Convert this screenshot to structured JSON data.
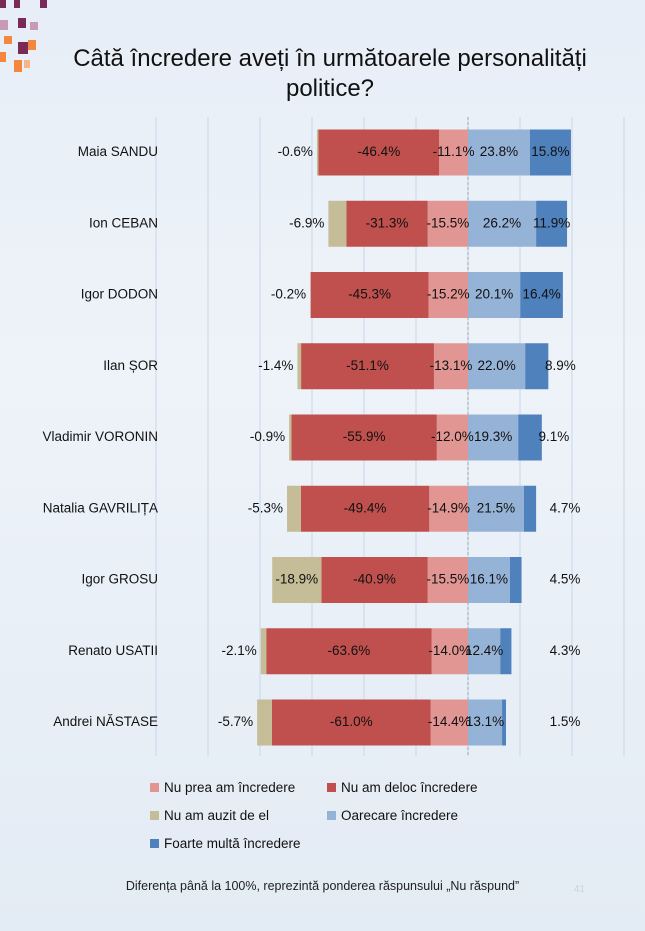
{
  "title_line1": "Câtă încredere aveți în următoarele personalități",
  "title_line2": "politice?",
  "footnote": "Diferența până la 100%, reprezintă ponderea răspunsului „Nu răspund”",
  "page_number": "41",
  "colors": {
    "nu_prea": "#e29693",
    "nu_deloc": "#c0504d",
    "nu_auzit": "#c4bd97",
    "oarecare": "#95b3d7",
    "foarte": "#4f81bd",
    "deco_purple": "#7a2a56",
    "deco_orange": "#f2873d"
  },
  "legend": [
    {
      "key": "nu_prea",
      "label": "Nu prea am încredere"
    },
    {
      "key": "nu_deloc",
      "label": "Nu am deloc încredere"
    },
    {
      "key": "nu_auzit",
      "label": "Nu am auzit de el"
    },
    {
      "key": "oarecare",
      "label": "Oarecare încredere"
    },
    {
      "key": "foarte",
      "label": "Foarte multă încredere"
    }
  ],
  "chart_data": {
    "type": "bar",
    "orientation": "horizontal-diverging",
    "stacked": true,
    "categories": [
      "Maia SANDU",
      "Ion CEBAN",
      "Igor DODON",
      "Ilan ȘOR",
      "Vladimir VORONIN",
      "Natalia GAVRILIȚA",
      "Igor GROSU",
      "Renato USATII",
      "Andrei NĂSTASE"
    ],
    "series": [
      {
        "name": "Nu prea am încredere",
        "key": "nu_prea",
        "values": [
          -11.1,
          -15.5,
          -15.2,
          -13.1,
          -12.0,
          -14.9,
          -15.5,
          -14.0,
          -14.4
        ]
      },
      {
        "name": "Nu am deloc încredere",
        "key": "nu_deloc",
        "values": [
          -46.4,
          -31.3,
          -45.3,
          -51.1,
          -55.9,
          -49.4,
          -40.9,
          -63.6,
          -61.0
        ]
      },
      {
        "name": "Nu am auzit de el",
        "key": "nu_auzit",
        "values": [
          -0.6,
          -6.9,
          -0.2,
          -1.4,
          -0.9,
          -5.3,
          -18.9,
          -2.1,
          -5.7
        ]
      },
      {
        "name": "Oarecare încredere",
        "key": "oarecare",
        "values": [
          23.8,
          26.2,
          20.1,
          22.0,
          19.3,
          21.5,
          16.1,
          12.4,
          13.1
        ]
      },
      {
        "name": "Foarte multă încredere",
        "key": "foarte",
        "values": [
          15.8,
          11.9,
          16.4,
          8.9,
          9.1,
          4.7,
          4.5,
          4.3,
          1.5
        ]
      }
    ],
    "labels": {
      "nu_prea": [
        "-11.1%",
        "-15.5%",
        "-15.2%",
        "-13.1%",
        "-12.0%",
        "-14.9%",
        "-15.5%",
        "-14.0%",
        "-14.4%"
      ],
      "nu_deloc": [
        "-46.4%",
        "-31.3%",
        "-45.3%",
        "-51.1%",
        "-55.9%",
        "-49.4%",
        "-40.9%",
        "-63.6%",
        "-61.0%"
      ],
      "nu_auzit": [
        "-0.6%",
        "-6.9%",
        "-0.2%",
        "-1.4%",
        "-0.9%",
        "-5.3%",
        "-18.9%",
        "-2.1%",
        "-5.7%"
      ],
      "oarecare": [
        "23.8%",
        "26.2%",
        "20.1%",
        "22.0%",
        "19.3%",
        "21.5%",
        "16.1%",
        "12.4%",
        "13.1%"
      ],
      "foarte": [
        "15.8%",
        "11.9%",
        "16.4%",
        "8.9%",
        "9.1%",
        "4.7%",
        "4.5%",
        "4.3%",
        "1.5%"
      ]
    },
    "xlim": [
      -120,
      60
    ],
    "grid": true,
    "legend_position": "bottom"
  }
}
